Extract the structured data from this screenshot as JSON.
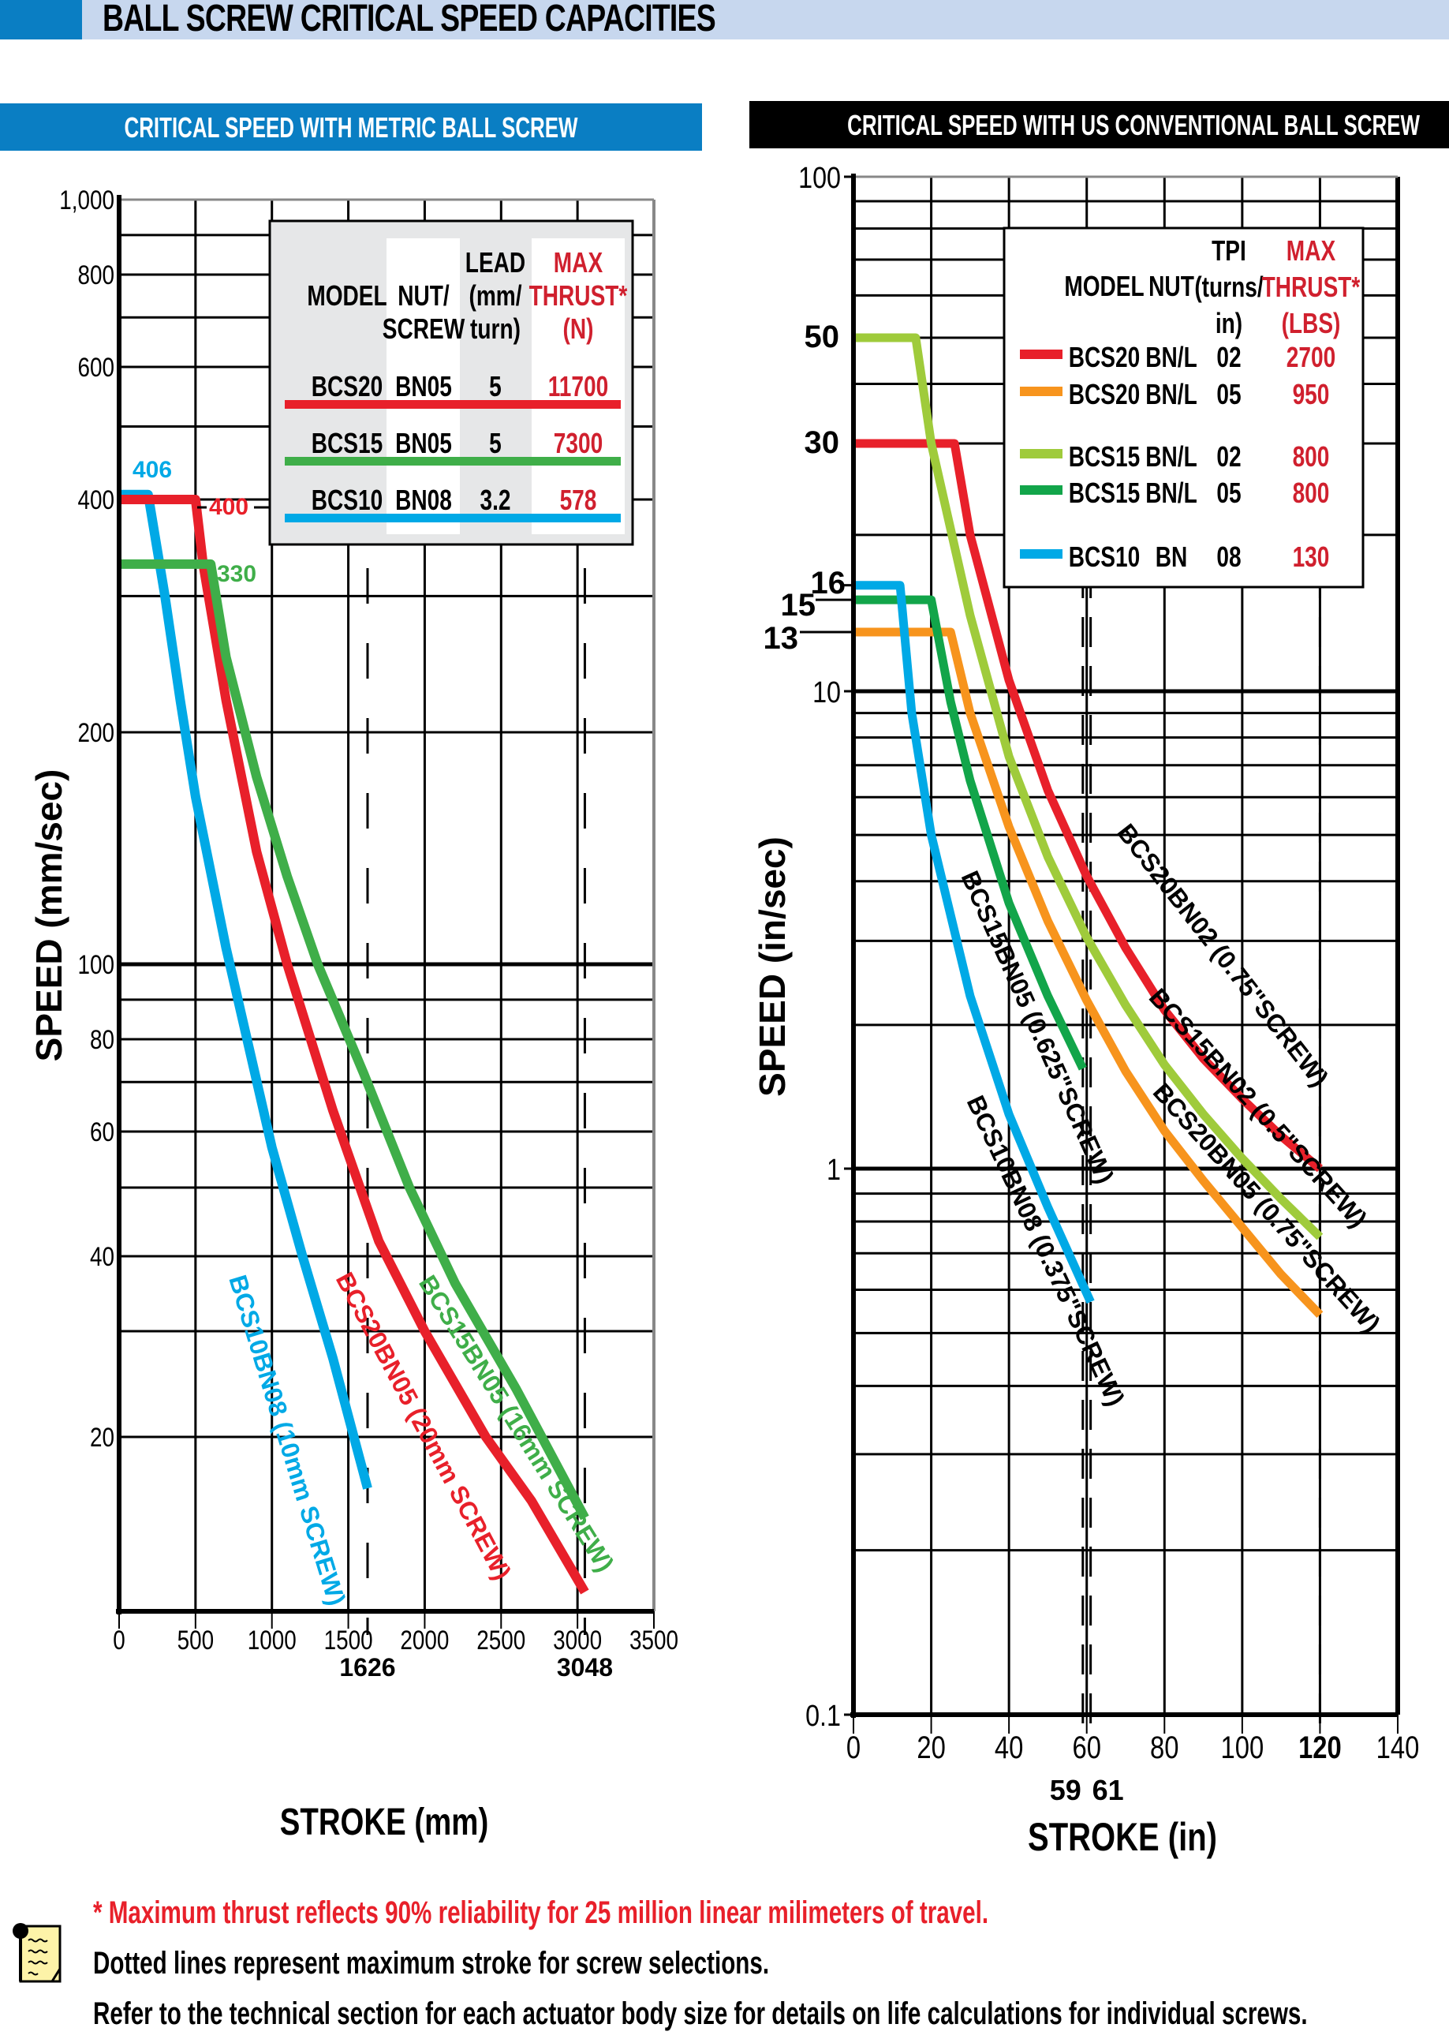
{
  "header": {
    "title": "BALL SCREW CRITICAL SPEED CAPACITIES",
    "metric_banner": "CRITICAL SPEED WITH  METRIC BALL SCREW",
    "us_banner": "CRITICAL SPEED WITH  US CONVENTIONAL BALL SCREW"
  },
  "colors": {
    "header_blue": "#0a7ec3",
    "header_light": "#c7d7ee",
    "red": "#e8202a",
    "green": "#3fae49",
    "cyan": "#00a9e6",
    "orange": "#f7941d",
    "lightgreen": "#9fcb3b",
    "darkgreen": "#12a54a",
    "thrust_red": "#d0202e"
  },
  "chart_data": [
    {
      "type": "line",
      "title": "CRITICAL SPEED WITH METRIC BALL SCREW",
      "xlabel": "STROKE (mm)",
      "ylabel": "SPEED (mm/sec)",
      "xlim": [
        0,
        3500
      ],
      "ylim": [
        10,
        1000
      ],
      "yscale": "log",
      "grid": true,
      "x_ticks": [
        "0",
        "500",
        "1000",
        "1500",
        "2000",
        "2500",
        "3000",
        "3500"
      ],
      "y_ticks": [
        "1,000",
        "800",
        "600",
        "400",
        "200",
        "100",
        "80",
        "60",
        "40",
        "20"
      ],
      "max_stroke_markers": [
        {
          "value": 1626,
          "label": "1626"
        },
        {
          "value": 3048,
          "label": "3048"
        }
      ],
      "legend": {
        "placement": "top-right",
        "headers": [
          "MODEL",
          "NUT/ SCREW",
          "LEAD (mm/ turn)",
          "MAX THRUST* (N)"
        ],
        "rows": [
          {
            "model": "BCS20",
            "nut": "BN05",
            "lead": "5",
            "thrust": "11700",
            "color": "#e8202a"
          },
          {
            "model": "BCS15",
            "nut": "BN05",
            "lead": "5",
            "thrust": "7300",
            "color": "#3fae49"
          },
          {
            "model": "BCS10",
            "nut": "BN08",
            "lead": "3.2",
            "thrust": "578",
            "color": "#00a9e6"
          }
        ]
      },
      "series": [
        {
          "name": "BCS10BN08 (10mm SCREW)",
          "color": "#00a9e6",
          "max_speed_label": "406",
          "points": [
            [
              0,
              406
            ],
            [
              190,
              406
            ],
            [
              300,
              300
            ],
            [
              400,
              220
            ],
            [
              500,
              165
            ],
            [
              700,
              105
            ],
            [
              1000,
              57
            ],
            [
              1200,
              40
            ],
            [
              1400,
              27
            ],
            [
              1626,
              16.3
            ]
          ]
        },
        {
          "name": "BCS20BN05 (20mm SCREW)",
          "color": "#e8202a",
          "max_speed_label": "400",
          "points": [
            [
              0,
              400
            ],
            [
              500,
              400
            ],
            [
              550,
              330
            ],
            [
              700,
              220
            ],
            [
              900,
              140
            ],
            [
              1100,
              100
            ],
            [
              1400,
              64
            ],
            [
              1700,
              42
            ],
            [
              2000,
              30
            ],
            [
              2400,
              20
            ],
            [
              2700,
              15.5
            ],
            [
              3048,
              10.8
            ]
          ]
        },
        {
          "name": "BCS15BN05 (16mm SCREW)",
          "color": "#3fae49",
          "max_speed_label": "330",
          "points": [
            [
              0,
              330
            ],
            [
              600,
              330
            ],
            [
              700,
              250
            ],
            [
              900,
              175
            ],
            [
              1100,
              130
            ],
            [
              1300,
              100
            ],
            [
              1600,
              72
            ],
            [
              1900,
              50
            ],
            [
              2200,
              36
            ],
            [
              2600,
              24
            ],
            [
              3048,
              14.5
            ]
          ]
        }
      ]
    },
    {
      "type": "line",
      "title": "CRITICAL SPEED WITH US CONVENTIONAL BALL SCREW",
      "xlabel": "STROKE (in)",
      "ylabel": "SPEED (in/sec)",
      "xlim": [
        0,
        140
      ],
      "ylim": [
        0.1,
        100
      ],
      "yscale": "log",
      "grid": true,
      "x_ticks": [
        "0",
        "20",
        "40",
        "60",
        "80",
        "100",
        "120",
        "140"
      ],
      "y_ticks": [
        "100",
        "10",
        "1",
        "0.1"
      ],
      "y_callouts": [
        "50",
        "30",
        "16",
        "15",
        "13"
      ],
      "max_stroke_markers": [
        {
          "value": 59,
          "label": "59"
        },
        {
          "value": 61,
          "label": "61"
        },
        {
          "value": 120,
          "label": ""
        }
      ],
      "legend": {
        "placement": "top-right",
        "headers": [
          "MODEL",
          "NUT",
          "TPI (turns/ in)",
          "MAX THRUST* (LBS)"
        ],
        "rows": [
          {
            "model": "BCS20",
            "nut": "BN/L",
            "tpi": "02",
            "thrust": "2700",
            "color": "#e8202a"
          },
          {
            "model": "BCS20",
            "nut": "BN/L",
            "tpi": "05",
            "thrust": "950",
            "color": "#f7941d"
          },
          {
            "model": "BCS15",
            "nut": "BN/L",
            "tpi": "02",
            "thrust": "800",
            "color": "#9fcb3b"
          },
          {
            "model": "BCS15",
            "nut": "BN/L",
            "tpi": "05",
            "thrust": "800",
            "color": "#12a54a"
          },
          {
            "model": "BCS10",
            "nut": "BN",
            "tpi": "08",
            "thrust": "130",
            "color": "#00a9e6"
          }
        ]
      },
      "series": [
        {
          "name": "BCS20BN02 (0.75\"SCREW)",
          "color": "#e8202a",
          "points": [
            [
              0,
              30
            ],
            [
              26,
              30
            ],
            [
              30,
              20
            ],
            [
              40,
              10.5
            ],
            [
              50,
              6.2
            ],
            [
              60,
              4.1
            ],
            [
              70,
              2.9
            ],
            [
              80,
              2.15
            ],
            [
              90,
              1.7
            ],
            [
              100,
              1.4
            ],
            [
              110,
              1.17
            ],
            [
              120,
              1.0
            ]
          ]
        },
        {
          "name": "BCS15BN02 (0.5\"SCREW)",
          "color": "#9fcb3b",
          "points": [
            [
              0,
              50
            ],
            [
              16,
              50
            ],
            [
              20,
              30
            ],
            [
              30,
              14
            ],
            [
              40,
              7.3
            ],
            [
              50,
              4.5
            ],
            [
              60,
              3.05
            ],
            [
              70,
              2.2
            ],
            [
              80,
              1.65
            ],
            [
              90,
              1.3
            ],
            [
              100,
              1.05
            ],
            [
              110,
              0.88
            ],
            [
              120,
              0.75
            ]
          ]
        },
        {
          "name": "BCS20BN05 (0.75\"SCREW)",
          "color": "#f7941d",
          "points": [
            [
              0,
              13
            ],
            [
              25,
              13
            ],
            [
              30,
              9
            ],
            [
              40,
              5.2
            ],
            [
              50,
              3.3
            ],
            [
              60,
              2.25
            ],
            [
              70,
              1.6
            ],
            [
              80,
              1.2
            ],
            [
              90,
              0.95
            ],
            [
              100,
              0.78
            ],
            [
              110,
              0.64
            ],
            [
              120,
              0.54
            ]
          ]
        },
        {
          "name": "BCS15BN05 (0.625\"SCREW)",
          "color": "#12a54a",
          "points": [
            [
              0,
              15
            ],
            [
              20,
              15
            ],
            [
              25,
              9.5
            ],
            [
              30,
              6.5
            ],
            [
              40,
              3.6
            ],
            [
              50,
              2.3
            ],
            [
              59,
              1.62
            ]
          ]
        },
        {
          "name": "BCS10BN08 (0.375\"SCREW)",
          "color": "#00a9e6",
          "points": [
            [
              0,
              16
            ],
            [
              12,
              16
            ],
            [
              15,
              9
            ],
            [
              20,
              5
            ],
            [
              30,
              2.3
            ],
            [
              40,
              1.3
            ],
            [
              50,
              0.85
            ],
            [
              61,
              0.57
            ]
          ]
        }
      ]
    }
  ],
  "footer": {
    "note_icon": "notepad-icon",
    "line1": "* Maximum thrust reflects 90% reliability for 25 million linear milimeters of travel.",
    "line2": "Dotted lines represent maximum stroke for screw selections.",
    "line3": "Refer to the technical section for each actuator body size for details on life calculations for individual screws."
  }
}
